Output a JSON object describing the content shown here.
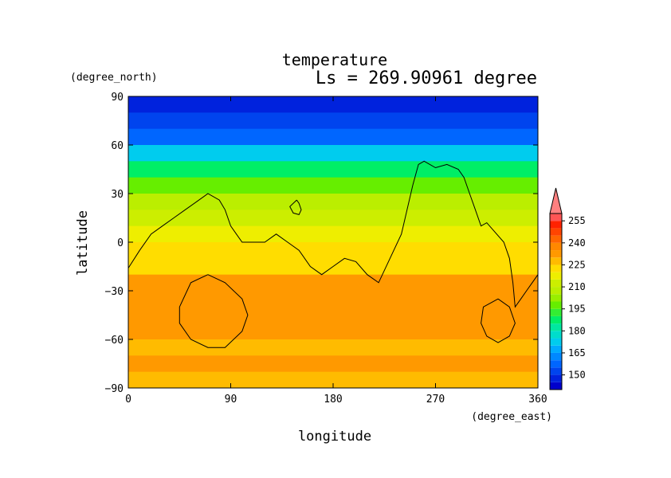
{
  "chart_data": {
    "type": "heatmap",
    "title": "temperature",
    "subtitle": "Ls = 269.90961 degree",
    "xlabel": "longitude",
    "ylabel": "latitude",
    "x_unit": "(degree_east)",
    "y_unit": "(degree_north)",
    "xlim": [
      0,
      360
    ],
    "ylim": [
      -90,
      90
    ],
    "x_ticks": [
      0,
      90,
      180,
      270,
      360
    ],
    "y_ticks": [
      90,
      60,
      30,
      0,
      -30,
      -60,
      -90
    ],
    "x_tick_labels": [
      "0",
      "90",
      "180",
      "270",
      "360"
    ],
    "y_tick_labels": [
      "90",
      "60",
      "30",
      "0",
      "−30",
      "−60",
      "−90"
    ],
    "colorbar": {
      "levels": [
        140,
        145,
        150,
        155,
        160,
        165,
        170,
        175,
        180,
        185,
        190,
        195,
        200,
        205,
        210,
        215,
        220,
        225,
        230,
        235,
        240,
        245,
        250,
        255,
        260
      ],
      "labels": [
        "150",
        "165",
        "180",
        "195",
        "210",
        "225",
        "240",
        "255"
      ],
      "label_values": [
        150,
        165,
        180,
        195,
        210,
        225,
        240,
        255
      ],
      "colors": [
        "#0000cc",
        "#0022dd",
        "#0044ee",
        "#0066ff",
        "#0088ff",
        "#00aaff",
        "#00ccee",
        "#00ddcc",
        "#00e8a0",
        "#00ee66",
        "#33ee33",
        "#66ee00",
        "#99ee00",
        "#bbee00",
        "#ccee00",
        "#eeee00",
        "#ffdd00",
        "#ffbb00",
        "#ff9900",
        "#ff8800",
        "#ff6600",
        "#ff4400",
        "#ff2200",
        "#ff5555"
      ],
      "overflow_color": "#ff8080"
    },
    "latitudes": [
      85,
      75,
      65,
      55,
      45,
      35,
      25,
      15,
      5,
      -5,
      -15,
      -25,
      -35,
      -45,
      -55,
      -65,
      -75,
      -85
    ],
    "zonal_mean_temperature": [
      148,
      150,
      158,
      172,
      187,
      199,
      209,
      214,
      216,
      220,
      224,
      230,
      234,
      233,
      231,
      229,
      231,
      227
    ],
    "coastlines": [
      [
        [
          0,
          -16
        ],
        [
          10,
          -5
        ],
        [
          20,
          5
        ],
        [
          30,
          10
        ],
        [
          40,
          15
        ],
        [
          50,
          20
        ],
        [
          60,
          25
        ],
        [
          70,
          30
        ],
        [
          80,
          26
        ],
        [
          85,
          20
        ],
        [
          90,
          10
        ],
        [
          95,
          5
        ],
        [
          100,
          0
        ],
        [
          110,
          0
        ],
        [
          120,
          0
        ],
        [
          130,
          5
        ],
        [
          140,
          0
        ],
        [
          150,
          -5
        ],
        [
          160,
          -15
        ],
        [
          170,
          -20
        ],
        [
          180,
          -15
        ],
        [
          190,
          -10
        ],
        [
          200,
          -12
        ],
        [
          210,
          -20
        ],
        [
          220,
          -25
        ],
        [
          230,
          -10
        ],
        [
          240,
          5
        ],
        [
          245,
          20
        ],
        [
          250,
          35
        ],
        [
          255,
          48
        ],
        [
          260,
          50
        ],
        [
          270,
          46
        ],
        [
          280,
          48
        ],
        [
          290,
          45
        ],
        [
          295,
          40
        ],
        [
          300,
          30
        ],
        [
          305,
          20
        ],
        [
          310,
          10
        ],
        [
          315,
          12
        ],
        [
          330,
          0
        ],
        [
          335,
          -10
        ],
        [
          338,
          -25
        ],
        [
          340,
          -40
        ],
        [
          345,
          -35
        ],
        [
          350,
          -30
        ],
        [
          355,
          -25
        ],
        [
          360,
          -20
        ]
      ],
      [
        [
          148,
          26
        ],
        [
          150,
          24
        ],
        [
          152,
          20
        ],
        [
          150,
          17
        ],
        [
          145,
          18
        ],
        [
          142,
          22
        ],
        [
          148,
          26
        ]
      ],
      [
        [
          70,
          -20
        ],
        [
          85,
          -25
        ],
        [
          100,
          -35
        ],
        [
          105,
          -45
        ],
        [
          100,
          -55
        ],
        [
          85,
          -65
        ],
        [
          70,
          -65
        ],
        [
          55,
          -60
        ],
        [
          45,
          -50
        ],
        [
          45,
          -40
        ],
        [
          55,
          -25
        ],
        [
          70,
          -20
        ]
      ],
      [
        [
          325,
          -35
        ],
        [
          335,
          -40
        ],
        [
          340,
          -50
        ],
        [
          335,
          -58
        ],
        [
          325,
          -62
        ],
        [
          315,
          -58
        ],
        [
          310,
          -50
        ],
        [
          312,
          -40
        ],
        [
          325,
          -35
        ]
      ]
    ]
  }
}
